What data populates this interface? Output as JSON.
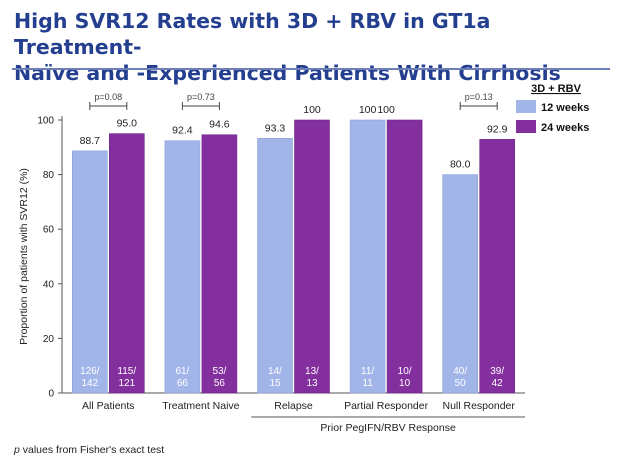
{
  "title_line1": "High SVR12 Rates with 3D + RBV in GT1a Treatment-",
  "title_line2": "Naïve and -Experienced Patients With Cirrhosis",
  "footnote_p": "p",
  "footnote_text": " values from Fisher's exact test",
  "colors": {
    "series_12": "#a2b5e8",
    "series_24": "#832f9e",
    "title": "#243f8f"
  },
  "chart_data": {
    "type": "bar",
    "ylabel": "Proportion of patients with SVR12 (%)",
    "ylim": [
      0,
      100
    ],
    "yticks": [
      0,
      20,
      40,
      60,
      80,
      100
    ],
    "categories": [
      "All Patients",
      "Treatment Naive",
      "Relapse",
      "Partial Responder",
      "Null Responder"
    ],
    "group_label": "Prior PegIFN/RBV Response",
    "group_categories": [
      "Relapse",
      "Partial Responder",
      "Null Responder"
    ],
    "legend_title": "3D + RBV",
    "series": [
      {
        "name": "12 weeks",
        "values": [
          88.7,
          92.4,
          93.3,
          100,
          80.0
        ],
        "labels": [
          "88.7",
          "92.4",
          "93.3",
          "100",
          "80.0"
        ],
        "n": [
          [
            "126/",
            "142"
          ],
          [
            "61/",
            "66"
          ],
          [
            "14/",
            "15"
          ],
          [
            "11/",
            "11"
          ],
          [
            "40/",
            "50"
          ]
        ]
      },
      {
        "name": "24 weeks",
        "values": [
          95.0,
          94.6,
          100,
          100,
          92.9
        ],
        "labels": [
          "95.0",
          "94.6",
          "100",
          "",
          "92.9"
        ],
        "n": [
          [
            "115/",
            "121"
          ],
          [
            "53/",
            "56"
          ],
          [
            "13/",
            "13"
          ],
          [
            "10/",
            "10"
          ],
          [
            "39/",
            "42"
          ]
        ]
      }
    ],
    "pvalues": [
      {
        "category": "All Patients",
        "label": "p=0.08"
      },
      {
        "category": "Treatment Naive",
        "label": "p=0.73"
      },
      {
        "category": "Null Responder",
        "label": "p=0.13"
      }
    ],
    "combined_labels": [
      {
        "category": "Partial Responder",
        "label": "100"
      }
    ]
  }
}
